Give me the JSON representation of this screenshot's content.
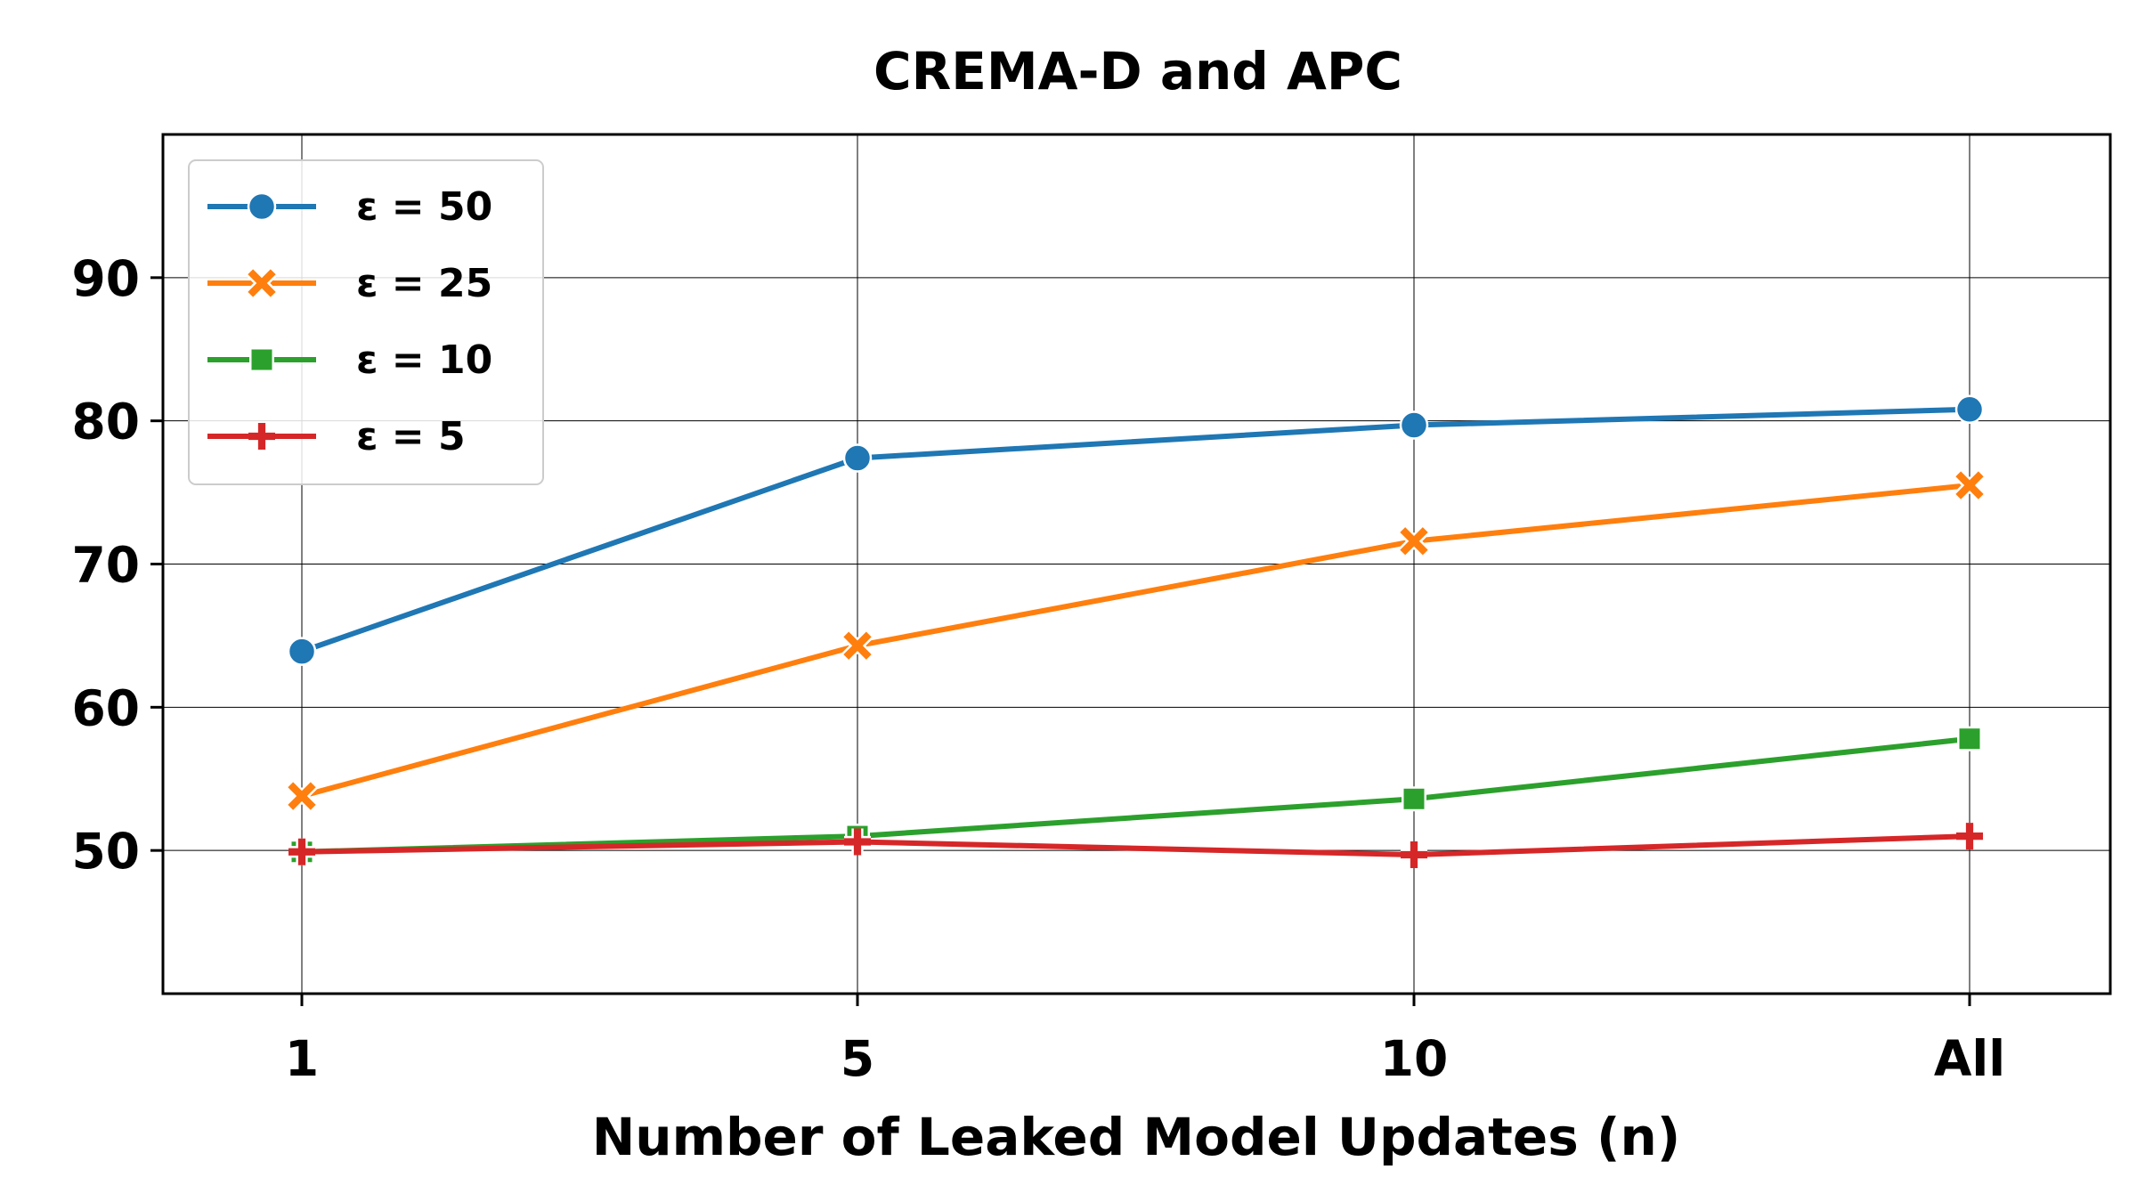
{
  "chart_data": {
    "type": "line",
    "title": "CREMA-D and APC",
    "xlabel": "Number of Leaked Model Updates (n)",
    "ylabel": "",
    "categories": [
      "1",
      "5",
      "10",
      "All"
    ],
    "ylim": [
      40,
      100
    ],
    "yticks": [
      50,
      60,
      70,
      80,
      90
    ],
    "grid": true,
    "legend_position": "top-left",
    "series": [
      {
        "name": "ε = 50",
        "color": "#1f77b4",
        "marker": "circle",
        "values": [
          63.9,
          77.4,
          79.7,
          80.8
        ]
      },
      {
        "name": "ε = 25",
        "color": "#ff7f0e",
        "marker": "x",
        "values": [
          53.8,
          64.3,
          71.6,
          75.5
        ]
      },
      {
        "name": "ε = 10",
        "color": "#2ca02c",
        "marker": "square",
        "values": [
          49.9,
          51.0,
          53.6,
          57.8
        ]
      },
      {
        "name": "ε = 5",
        "color": "#d62728",
        "marker": "plus",
        "values": [
          49.9,
          50.6,
          49.7,
          51.0
        ]
      }
    ]
  }
}
